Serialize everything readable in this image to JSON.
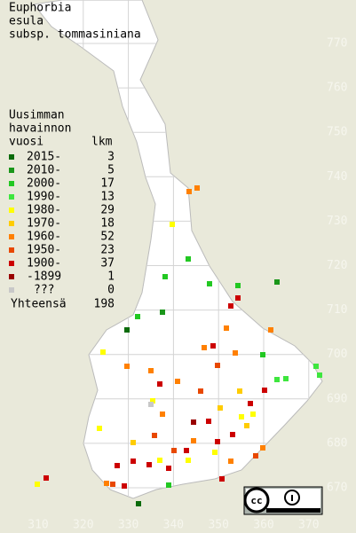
{
  "title_lines": [
    "Euphorbia",
    "esula",
    "subsp. tommasiniana"
  ],
  "legend": {
    "header_lines": [
      "Uusimman",
      "havainnon"
    ],
    "column_headers": [
      "vuosi",
      "lkm"
    ],
    "entries": [
      {
        "label": "2015-",
        "count": 3,
        "color": "#0b6b0b"
      },
      {
        "label": "2010-",
        "count": 5,
        "color": "#1a961a"
      },
      {
        "label": "2000-",
        "count": 17,
        "color": "#22c822"
      },
      {
        "label": "1990-",
        "count": 13,
        "color": "#3ee63e"
      },
      {
        "label": "1980-",
        "count": 29,
        "color": "#ffff00"
      },
      {
        "label": "1970-",
        "count": 18,
        "color": "#ffcc00"
      },
      {
        "label": "1960-",
        "count": 52,
        "color": "#ff8000"
      },
      {
        "label": "1950-",
        "count": 23,
        "color": "#e84800"
      },
      {
        "label": "1900-",
        "count": 37,
        "color": "#cc0000"
      },
      {
        "label": "-1899",
        "count": 1,
        "color": "#990000"
      },
      {
        "label": "???",
        "count": 0,
        "color": "#c8c8c8"
      }
    ],
    "total": {
      "label": "Yhteensä",
      "count": 198
    }
  },
  "grid": {
    "northing": [
      770,
      760,
      750,
      740,
      730,
      720,
      710,
      700,
      690,
      680,
      670
    ],
    "easting": [
      310,
      320,
      330,
      340,
      350,
      360,
      370
    ]
  }
}
